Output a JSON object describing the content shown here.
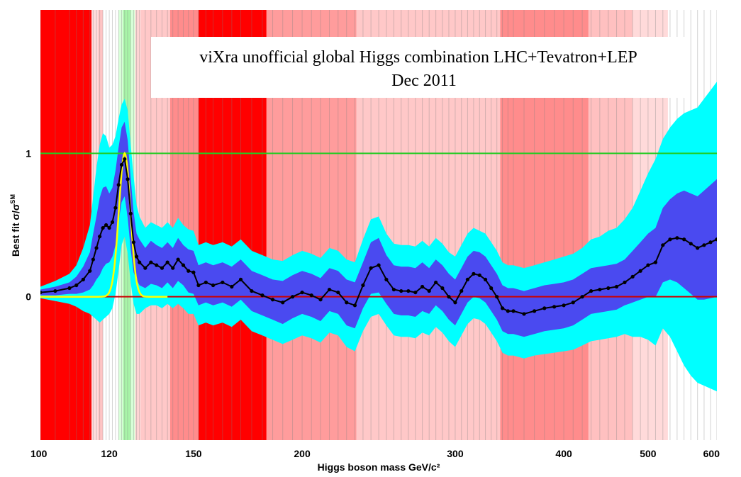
{
  "chart_data": {
    "type": "line",
    "title": "viXra unofficial global Higgs combination LHC+Tevatron+LEP",
    "subtitle": "Dec 2011",
    "xlabel": "Higgs boson mass GeV/c²",
    "ylabel": "Best fit σ/σ",
    "ylabel_superscript": "SM",
    "x_scale": "log",
    "xlim": [
      100,
      600
    ],
    "ylim": [
      -1.0,
      2.0
    ],
    "x_ticks": [
      100,
      120,
      150,
      200,
      300,
      400,
      500,
      600
    ],
    "y_ticks": [
      0,
      1
    ],
    "grid": "vertical lines at every mass point",
    "colors": {
      "one_sigma_band": "#4a4af0",
      "two_sigma_band": "#00ffff",
      "fit_line": "#000000",
      "signal_line": "#ffff00",
      "sm_line": "#22cc22",
      "zero_line": "#cc0000",
      "excluded_strong": "#ff0000",
      "excluded_weak": "#ffc8c8",
      "allowed_region": "#c8ffc8"
    },
    "exclusion_bands": [
      {
        "from": 100,
        "to": 114.5,
        "color": "#ff0000"
      },
      {
        "from": 114.5,
        "to": 116.5,
        "color": "#ffdcdc"
      },
      {
        "from": 116.5,
        "to": 118,
        "color": "#ffc4c4"
      },
      {
        "from": 118,
        "to": 123,
        "color": "#ffffff"
      },
      {
        "from": 123,
        "to": 124.5,
        "color": "#d8ffd8"
      },
      {
        "from": 124.5,
        "to": 127,
        "color": "#a8f5a8"
      },
      {
        "from": 127,
        "to": 128.5,
        "color": "#d8ffd8"
      },
      {
        "from": 128.5,
        "to": 130.5,
        "color": "#ffd4d4"
      },
      {
        "from": 130.5,
        "to": 141,
        "color": "#ffc8c8"
      },
      {
        "from": 141,
        "to": 152,
        "color": "#ff8c8c"
      },
      {
        "from": 152,
        "to": 182,
        "color": "#ff0000"
      },
      {
        "from": 182,
        "to": 231,
        "color": "#ff9c9c"
      },
      {
        "from": 231,
        "to": 338,
        "color": "#ffc8c8"
      },
      {
        "from": 338,
        "to": 427,
        "color": "#ff8c8c"
      },
      {
        "from": 427,
        "to": 480,
        "color": "#ffc0c0"
      },
      {
        "from": 480,
        "to": 527,
        "color": "#ffdada"
      },
      {
        "from": 527,
        "to": 600,
        "color": "#ffffff"
      }
    ],
    "series": [
      {
        "x": [
          100,
          104,
          108,
          110,
          112,
          114,
          115,
          116,
          117,
          118,
          119,
          120,
          121,
          122,
          123,
          124,
          125,
          126,
          127,
          128,
          129,
          130,
          132,
          134,
          136,
          138,
          140,
          142,
          144,
          146,
          148,
          150,
          152,
          155,
          158,
          162,
          166,
          170,
          175,
          180,
          185,
          190,
          195,
          200,
          205,
          210,
          215,
          220,
          225,
          230,
          235,
          240,
          245,
          250,
          255,
          260,
          265,
          270,
          275,
          280,
          285,
          290,
          295,
          300,
          305,
          310,
          315,
          320,
          325,
          330,
          335,
          340,
          345,
          350,
          360,
          370,
          380,
          390,
          400,
          410,
          420,
          430,
          440,
          450,
          460,
          470,
          480,
          490,
          500,
          510,
          520,
          530,
          540,
          550,
          560,
          570,
          580,
          590,
          600
        ],
        "best_fit": [
          0.03,
          0.04,
          0.06,
          0.08,
          0.12,
          0.18,
          0.26,
          0.34,
          0.42,
          0.48,
          0.5,
          0.48,
          0.52,
          0.62,
          0.78,
          0.92,
          0.96,
          0.82,
          0.58,
          0.38,
          0.28,
          0.24,
          0.2,
          0.24,
          0.22,
          0.2,
          0.24,
          0.2,
          0.26,
          0.22,
          0.18,
          0.17,
          0.08,
          0.1,
          0.08,
          0.1,
          0.07,
          0.12,
          0.04,
          0.01,
          -0.02,
          -0.04,
          0.0,
          0.03,
          0.01,
          -0.02,
          0.05,
          0.03,
          -0.04,
          -0.06,
          0.08,
          0.2,
          0.22,
          0.12,
          0.05,
          0.04,
          0.04,
          0.03,
          0.07,
          0.04,
          0.1,
          0.06,
          0.0,
          -0.04,
          0.04,
          0.12,
          0.16,
          0.15,
          0.12,
          0.06,
          0.0,
          -0.08,
          -0.1,
          -0.1,
          -0.12,
          -0.1,
          -0.08,
          -0.07,
          -0.06,
          -0.04,
          0.0,
          0.04,
          0.05,
          0.06,
          0.07,
          0.1,
          0.14,
          0.18,
          0.22,
          0.24,
          0.36,
          0.4,
          0.41,
          0.4,
          0.37,
          0.34,
          0.36,
          0.38,
          0.4
        ],
        "one_sigma_lo": [
          0.01,
          0.01,
          0.02,
          0.02,
          0.03,
          0.05,
          0.08,
          0.12,
          0.15,
          0.2,
          0.23,
          0.24,
          0.28,
          0.36,
          0.52,
          0.66,
          0.7,
          0.55,
          0.33,
          0.17,
          0.12,
          0.08,
          0.06,
          0.09,
          0.08,
          0.06,
          0.1,
          0.06,
          0.11,
          0.08,
          0.03,
          0.02,
          -0.06,
          -0.04,
          -0.06,
          -0.04,
          -0.07,
          -0.02,
          -0.1,
          -0.13,
          -0.16,
          -0.19,
          -0.15,
          -0.12,
          -0.14,
          -0.17,
          -0.1,
          -0.12,
          -0.2,
          -0.22,
          -0.08,
          0.02,
          0.03,
          -0.05,
          -0.12,
          -0.13,
          -0.13,
          -0.14,
          -0.1,
          -0.12,
          -0.06,
          -0.1,
          -0.16,
          -0.2,
          -0.12,
          -0.04,
          0.0,
          -0.01,
          -0.04,
          -0.1,
          -0.16,
          -0.24,
          -0.26,
          -0.26,
          -0.28,
          -0.26,
          -0.24,
          -0.23,
          -0.22,
          -0.2,
          -0.16,
          -0.12,
          -0.11,
          -0.1,
          -0.09,
          -0.06,
          -0.04,
          -0.02,
          0.0,
          0.0,
          0.1,
          0.12,
          0.1,
          0.06,
          0.02,
          -0.02,
          -0.02,
          -0.01,
          0.0
        ],
        "one_sigma_hi": [
          0.05,
          0.07,
          0.1,
          0.14,
          0.21,
          0.31,
          0.44,
          0.56,
          0.69,
          0.76,
          0.77,
          0.72,
          0.76,
          0.88,
          1.04,
          1.18,
          1.22,
          1.09,
          0.83,
          0.59,
          0.44,
          0.4,
          0.34,
          0.39,
          0.36,
          0.34,
          0.38,
          0.34,
          0.41,
          0.36,
          0.33,
          0.32,
          0.22,
          0.24,
          0.22,
          0.24,
          0.21,
          0.26,
          0.18,
          0.15,
          0.12,
          0.11,
          0.15,
          0.18,
          0.16,
          0.13,
          0.2,
          0.18,
          0.12,
          0.1,
          0.24,
          0.38,
          0.41,
          0.29,
          0.22,
          0.21,
          0.21,
          0.2,
          0.24,
          0.2,
          0.26,
          0.22,
          0.16,
          0.12,
          0.2,
          0.28,
          0.32,
          0.31,
          0.28,
          0.22,
          0.16,
          0.08,
          0.06,
          0.06,
          0.04,
          0.06,
          0.08,
          0.09,
          0.1,
          0.12,
          0.16,
          0.2,
          0.21,
          0.22,
          0.23,
          0.26,
          0.32,
          0.38,
          0.44,
          0.48,
          0.62,
          0.68,
          0.72,
          0.74,
          0.72,
          0.7,
          0.74,
          0.78,
          0.82
        ],
        "two_sigma_lo": [
          -0.01,
          -0.03,
          -0.05,
          -0.07,
          -0.1,
          -0.12,
          -0.14,
          -0.16,
          -0.18,
          -0.16,
          -0.14,
          -0.12,
          -0.08,
          0.02,
          0.18,
          0.36,
          0.42,
          0.3,
          0.1,
          -0.05,
          -0.12,
          -0.12,
          -0.08,
          -0.06,
          -0.06,
          -0.08,
          -0.05,
          -0.08,
          -0.05,
          -0.08,
          -0.12,
          -0.12,
          -0.2,
          -0.18,
          -0.2,
          -0.18,
          -0.21,
          -0.16,
          -0.24,
          -0.27,
          -0.3,
          -0.33,
          -0.3,
          -0.27,
          -0.29,
          -0.32,
          -0.25,
          -0.27,
          -0.35,
          -0.38,
          -0.24,
          -0.14,
          -0.12,
          -0.2,
          -0.27,
          -0.28,
          -0.28,
          -0.29,
          -0.25,
          -0.27,
          -0.21,
          -0.25,
          -0.31,
          -0.35,
          -0.27,
          -0.19,
          -0.15,
          -0.16,
          -0.19,
          -0.25,
          -0.31,
          -0.39,
          -0.41,
          -0.41,
          -0.43,
          -0.41,
          -0.4,
          -0.39,
          -0.38,
          -0.37,
          -0.34,
          -0.31,
          -0.3,
          -0.29,
          -0.28,
          -0.26,
          -0.28,
          -0.28,
          -0.3,
          -0.34,
          -0.22,
          -0.28,
          -0.38,
          -0.48,
          -0.55,
          -0.6,
          -0.62,
          -0.64,
          -0.66
        ],
        "two_sigma_hi": [
          0.07,
          0.11,
          0.16,
          0.22,
          0.34,
          0.5,
          0.7,
          0.9,
          1.06,
          1.14,
          1.12,
          1.04,
          1.06,
          1.12,
          1.24,
          1.34,
          1.38,
          1.3,
          1.06,
          0.84,
          0.64,
          0.56,
          0.48,
          0.52,
          0.5,
          0.48,
          0.52,
          0.48,
          0.55,
          0.5,
          0.47,
          0.46,
          0.36,
          0.38,
          0.36,
          0.38,
          0.35,
          0.4,
          0.32,
          0.29,
          0.26,
          0.25,
          0.29,
          0.32,
          0.3,
          0.27,
          0.34,
          0.32,
          0.26,
          0.24,
          0.4,
          0.54,
          0.56,
          0.44,
          0.37,
          0.36,
          0.36,
          0.35,
          0.39,
          0.35,
          0.41,
          0.37,
          0.31,
          0.28,
          0.36,
          0.44,
          0.48,
          0.46,
          0.44,
          0.38,
          0.32,
          0.24,
          0.22,
          0.22,
          0.2,
          0.22,
          0.24,
          0.26,
          0.28,
          0.3,
          0.34,
          0.4,
          0.42,
          0.46,
          0.48,
          0.54,
          0.62,
          0.74,
          0.86,
          0.96,
          1.1,
          1.18,
          1.24,
          1.28,
          1.3,
          1.32,
          1.38,
          1.44,
          1.5
        ]
      }
    ],
    "reference_lines": [
      {
        "y": 1,
        "color": "#22cc22"
      },
      {
        "y": 0,
        "color": "#cc0000"
      }
    ],
    "signal_curve": {
      "peak_mass": 125,
      "peak_value": 1,
      "width": 1.9,
      "color": "#ffff00"
    }
  }
}
